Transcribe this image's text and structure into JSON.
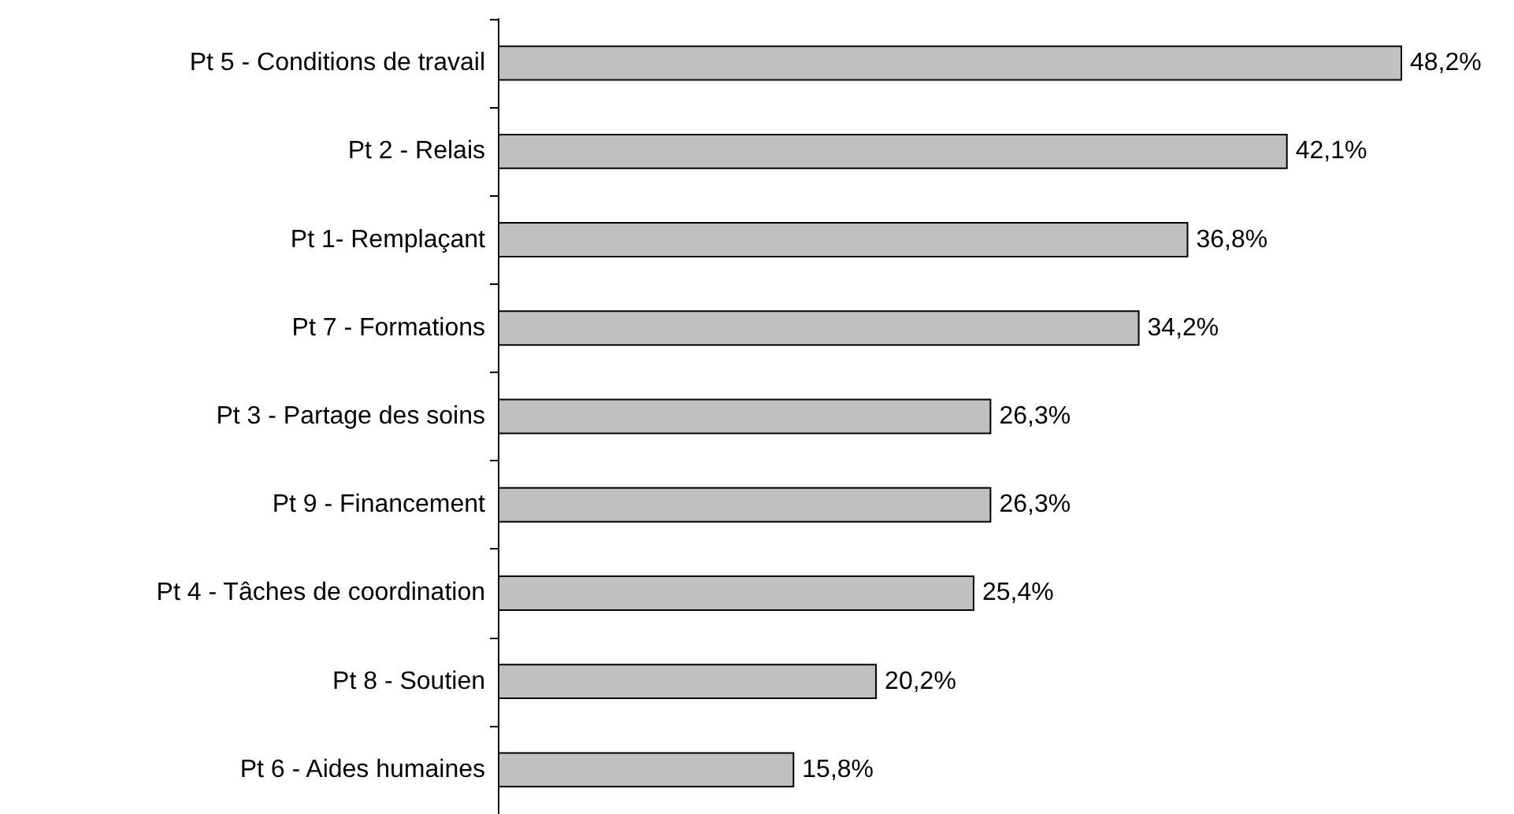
{
  "chart_data": {
    "type": "bar",
    "orientation": "horizontal",
    "categories": [
      "Pt 5 - Conditions de travail",
      "Pt 2 - Relais",
      "Pt 1- Remplaçant",
      "Pt 7 - Formations",
      "Pt 3 - Partage des soins",
      "Pt 9 - Financement",
      "Pt 4 - Tâches de coordination",
      "Pt 8 - Soutien",
      "Pt 6 - Aides humaines"
    ],
    "values": [
      48.2,
      42.1,
      36.8,
      34.2,
      26.3,
      26.3,
      25.4,
      20.2,
      15.8
    ],
    "value_labels": [
      "48,2%",
      "42,1%",
      "36,8%",
      "34,2%",
      "26,3%",
      "26,3%",
      "25,4%",
      "20,2%",
      "15,8%"
    ],
    "color": "#c0c0c0"
  }
}
